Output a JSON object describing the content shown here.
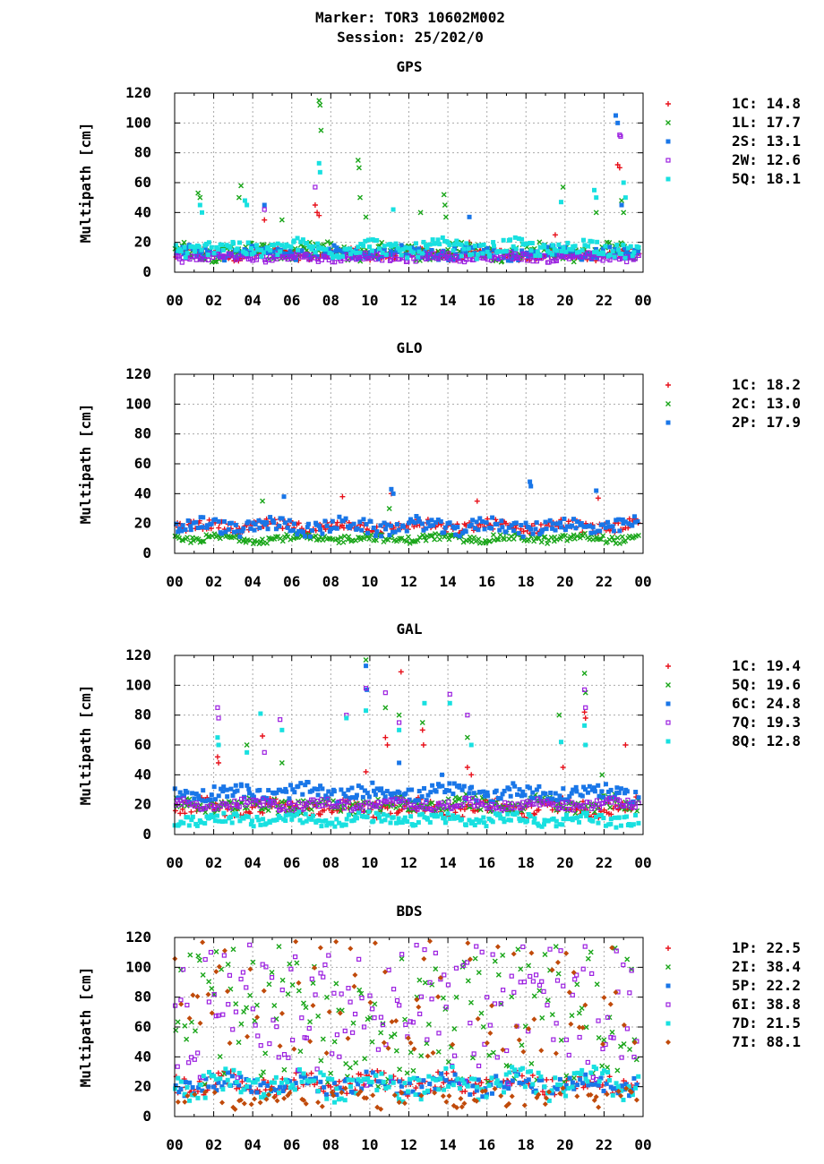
{
  "header": {
    "line1": "Marker: TOR3 10602M002",
    "line2": "Session: 25/202/0"
  },
  "chart_data": [
    {
      "type": "scatter",
      "title": "GPS",
      "ylabel": "Multipath [cm]",
      "xlabel": "",
      "ylim": [
        0,
        120
      ],
      "yticks": [
        "0",
        "20",
        "40",
        "60",
        "80",
        "100",
        "120"
      ],
      "xticks": [
        "00",
        "02",
        "04",
        "06",
        "08",
        "10",
        "12",
        "14",
        "16",
        "18",
        "20",
        "22",
        "00"
      ],
      "grid": true,
      "legend_position": "right",
      "series": [
        {
          "name": "1C",
          "legend_value": "14.8",
          "color": "#e8111b",
          "marker": "plus",
          "base": 12,
          "spread": 5,
          "spikes": [
            [
              4.6,
              35
            ],
            [
              7.2,
              45
            ],
            [
              7.3,
              40
            ],
            [
              7.4,
              38
            ],
            [
              22.7,
              72
            ],
            [
              22.8,
              70
            ],
            [
              15.1,
              20
            ],
            [
              19.5,
              25
            ]
          ]
        },
        {
          "name": "1L",
          "legend_value": "17.7",
          "color": "#1aa61a",
          "marker": "cross",
          "base": 14,
          "spread": 8,
          "spikes": [
            [
              1.2,
              53
            ],
            [
              1.3,
              50
            ],
            [
              3.4,
              58
            ],
            [
              3.3,
              50
            ],
            [
              5.5,
              35
            ],
            [
              7.4,
              115
            ],
            [
              7.45,
              112
            ],
            [
              7.5,
              95
            ],
            [
              9.4,
              75
            ],
            [
              9.45,
              70
            ],
            [
              9.5,
              50
            ],
            [
              9.8,
              37
            ],
            [
              12.6,
              40
            ],
            [
              13.8,
              52
            ],
            [
              13.85,
              45
            ],
            [
              13.9,
              37
            ],
            [
              19.9,
              57
            ],
            [
              21.6,
              40
            ],
            [
              22.9,
              48
            ],
            [
              23.0,
              40
            ]
          ]
        },
        {
          "name": "2S",
          "legend_value": "13.1",
          "color": "#1976e8",
          "marker": "square",
          "base": 13,
          "spread": 6,
          "spikes": [
            [
              4.6,
              45
            ],
            [
              15.1,
              37
            ],
            [
              22.6,
              105
            ],
            [
              22.7,
              100
            ],
            [
              22.9,
              45
            ]
          ]
        },
        {
          "name": "2W",
          "legend_value": "12.6",
          "color": "#9b1fe0",
          "marker": "opensquare",
          "base": 10,
          "spread": 4,
          "spikes": [
            [
              4.6,
              42
            ],
            [
              7.2,
              57
            ],
            [
              22.8,
              92
            ],
            [
              22.85,
              91
            ]
          ]
        },
        {
          "name": "5Q",
          "legend_value": "18.1",
          "color": "#18e0e0",
          "marker": "square",
          "base": 16,
          "spread": 8,
          "spikes": [
            [
              1.3,
              45
            ],
            [
              1.4,
              40
            ],
            [
              3.6,
              48
            ],
            [
              3.7,
              45
            ],
            [
              7.4,
              73
            ],
            [
              7.45,
              67
            ],
            [
              11.2,
              42
            ],
            [
              19.8,
              47
            ],
            [
              21.5,
              55
            ],
            [
              21.6,
              50
            ],
            [
              23.0,
              60
            ],
            [
              23.1,
              50
            ]
          ]
        }
      ]
    },
    {
      "type": "scatter",
      "title": "GLO",
      "ylabel": "Multipath [cm]",
      "xlabel": "",
      "ylim": [
        0,
        120
      ],
      "yticks": [
        "0",
        "20",
        "40",
        "60",
        "80",
        "100",
        "120"
      ],
      "xticks": [
        "00",
        "02",
        "04",
        "06",
        "08",
        "10",
        "12",
        "14",
        "16",
        "18",
        "20",
        "22",
        "00"
      ],
      "grid": true,
      "legend_position": "right",
      "series": [
        {
          "name": "1C",
          "legend_value": "18.2",
          "color": "#e8111b",
          "marker": "plus",
          "base": 18,
          "spread": 6,
          "spikes": [
            [
              8.6,
              38
            ],
            [
              11.1,
              40
            ],
            [
              15.5,
              35
            ],
            [
              21.7,
              37
            ]
          ]
        },
        {
          "name": "2C",
          "legend_value": "13.0",
          "color": "#1aa61a",
          "marker": "cross",
          "base": 10,
          "spread": 4,
          "spikes": [
            [
              4.5,
              35
            ],
            [
              11.0,
              30
            ]
          ]
        },
        {
          "name": "2P",
          "legend_value": "17.9",
          "color": "#1976e8",
          "marker": "square",
          "base": 18,
          "spread": 8,
          "spikes": [
            [
              5.6,
              38
            ],
            [
              11.1,
              43
            ],
            [
              11.2,
              40
            ],
            [
              18.2,
              48
            ],
            [
              18.25,
              45
            ],
            [
              21.6,
              42
            ]
          ]
        }
      ]
    },
    {
      "type": "scatter",
      "title": "GAL",
      "ylabel": "Multipath [cm]",
      "xlabel": "",
      "ylim": [
        0,
        120
      ],
      "yticks": [
        "0",
        "20",
        "40",
        "60",
        "80",
        "100",
        "120"
      ],
      "xticks": [
        "00",
        "02",
        "04",
        "06",
        "08",
        "10",
        "12",
        "14",
        "16",
        "18",
        "20",
        "22",
        "00"
      ],
      "grid": true,
      "legend_position": "right",
      "series": [
        {
          "name": "1C",
          "legend_value": "19.4",
          "color": "#e8111b",
          "marker": "plus",
          "base": 18,
          "spread": 8,
          "spikes": [
            [
              2.2,
              52
            ],
            [
              2.25,
              48
            ],
            [
              4.5,
              66
            ],
            [
              9.8,
              42
            ],
            [
              10.8,
              65
            ],
            [
              10.9,
              60
            ],
            [
              11.6,
              109
            ],
            [
              12.7,
              70
            ],
            [
              12.75,
              60
            ],
            [
              15.0,
              45
            ],
            [
              15.2,
              40
            ],
            [
              19.9,
              45
            ],
            [
              21.0,
              82
            ],
            [
              21.05,
              78
            ],
            [
              23.1,
              60
            ]
          ]
        },
        {
          "name": "5Q",
          "legend_value": "19.6",
          "color": "#1aa61a",
          "marker": "cross",
          "base": 20,
          "spread": 8,
          "spikes": [
            [
              3.7,
              60
            ],
            [
              5.5,
              48
            ],
            [
              9.8,
              117
            ],
            [
              10.8,
              85
            ],
            [
              11.5,
              80
            ],
            [
              12.7,
              75
            ],
            [
              15.0,
              65
            ],
            [
              19.7,
              80
            ],
            [
              21.0,
              108
            ],
            [
              21.05,
              95
            ],
            [
              21.9,
              40
            ]
          ]
        },
        {
          "name": "6C",
          "legend_value": "24.8",
          "color": "#1976e8",
          "marker": "square",
          "base": 28,
          "spread": 8,
          "spikes": [
            [
              9.8,
              113
            ],
            [
              9.85,
              97
            ],
            [
              11.5,
              48
            ],
            [
              13.7,
              40
            ]
          ]
        },
        {
          "name": "7Q",
          "legend_value": "19.3",
          "color": "#9b1fe0",
          "marker": "opensquare",
          "base": 20,
          "spread": 5,
          "spikes": [
            [
              2.2,
              85
            ],
            [
              2.25,
              78
            ],
            [
              4.6,
              55
            ],
            [
              5.4,
              77
            ],
            [
              8.8,
              80
            ],
            [
              9.8,
              98
            ],
            [
              10.8,
              95
            ],
            [
              11.5,
              75
            ],
            [
              14.1,
              94
            ],
            [
              15.0,
              80
            ],
            [
              21.0,
              97
            ],
            [
              21.05,
              85
            ]
          ]
        },
        {
          "name": "8Q",
          "legend_value": "12.8",
          "color": "#18e0e0",
          "marker": "square",
          "base": 10,
          "spread": 6,
          "spikes": [
            [
              2.2,
              65
            ],
            [
              2.25,
              60
            ],
            [
              3.7,
              55
            ],
            [
              4.4,
              81
            ],
            [
              5.5,
              70
            ],
            [
              8.8,
              78
            ],
            [
              9.8,
              83
            ],
            [
              11.5,
              70
            ],
            [
              12.8,
              88
            ],
            [
              14.1,
              88
            ],
            [
              15.2,
              60
            ],
            [
              19.8,
              62
            ],
            [
              21.0,
              73
            ],
            [
              21.05,
              60
            ]
          ]
        }
      ]
    },
    {
      "type": "scatter",
      "title": "BDS",
      "ylabel": "Multipath [cm]",
      "xlabel": "",
      "ylim": [
        0,
        120
      ],
      "yticks": [
        "0",
        "20",
        "40",
        "60",
        "80",
        "100",
        "120"
      ],
      "xticks": [
        "00",
        "02",
        "04",
        "06",
        "08",
        "10",
        "12",
        "14",
        "16",
        "18",
        "20",
        "22",
        "00"
      ],
      "grid": true,
      "legend_position": "right",
      "series": [
        {
          "name": "1P",
          "legend_value": "22.5",
          "color": "#e8111b",
          "marker": "plus",
          "base": 22,
          "spread": 10,
          "spikes": []
        },
        {
          "name": "2I",
          "legend_value": "38.4",
          "color": "#1aa61a",
          "marker": "cross",
          "base": 38,
          "spread": 30,
          "spikes": []
        },
        {
          "name": "5P",
          "legend_value": "22.2",
          "color": "#1976e8",
          "marker": "square",
          "base": 22,
          "spread": 10,
          "spikes": []
        },
        {
          "name": "6I",
          "legend_value": "38.8",
          "color": "#9b1fe0",
          "marker": "opensquare",
          "base": 40,
          "spread": 30,
          "spikes": []
        },
        {
          "name": "7D",
          "legend_value": "21.5",
          "color": "#18e0e0",
          "marker": "square",
          "base": 22,
          "spread": 14,
          "spikes": []
        },
        {
          "name": "7I",
          "legend_value": "88.1",
          "color": "#c04a0a",
          "marker": "diamond",
          "base": 12,
          "spread": 8,
          "high_band": true,
          "spikes": []
        }
      ]
    }
  ]
}
